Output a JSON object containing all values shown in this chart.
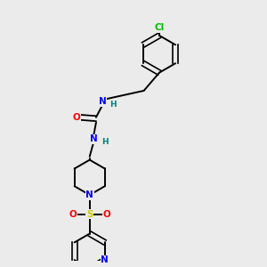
{
  "background_color": "#ebebeb",
  "bond_color": "#000000",
  "atom_colors": {
    "O": "#ff0000",
    "N": "#0000ff",
    "S": "#cccc00",
    "Cl": "#00bb00",
    "C": "#000000",
    "H": "#008080"
  },
  "fig_width": 3.0,
  "fig_height": 3.0,
  "dpi": 100
}
